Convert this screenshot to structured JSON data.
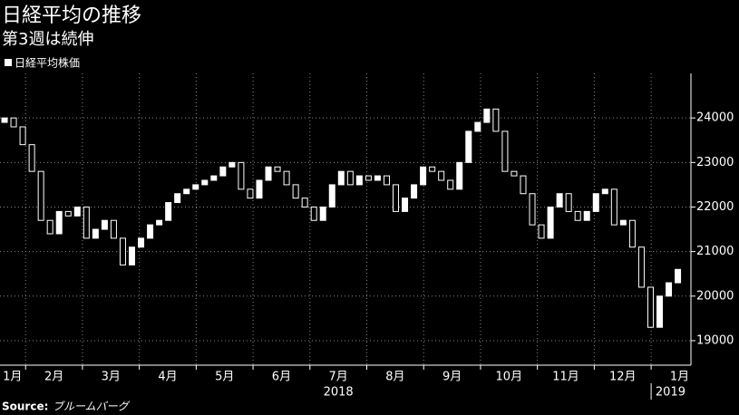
{
  "chart_data": {
    "type": "candlestick",
    "title": "日経平均の推移",
    "subtitle": "第3週は続伸",
    "legend_label": "日経平均株価",
    "source_label": "Source:",
    "source": "ブルームバーグ",
    "up_color": "#ffffff",
    "down_color": "#000000",
    "edge_color": "#ffffff",
    "x": [
      0.63,
      0.79,
      0.95,
      1.11,
      1.27,
      1.43,
      1.59,
      1.75,
      1.91,
      2.07,
      2.23,
      2.39,
      2.55,
      2.71,
      2.87,
      3.03,
      3.19,
      3.35,
      3.51,
      3.67,
      3.83,
      3.99,
      4.15,
      4.31,
      4.47,
      4.63,
      4.79,
      4.95,
      5.11,
      5.27,
      5.43,
      5.59,
      5.75,
      5.91,
      6.07,
      6.23,
      6.39,
      6.55,
      6.71,
      6.87,
      7.03,
      7.19,
      7.35,
      7.51,
      7.67,
      7.83,
      7.99,
      8.15,
      8.31,
      8.47,
      8.63,
      8.79,
      8.95,
      9.11,
      9.27,
      9.43,
      9.59,
      9.75,
      9.91,
      10.07,
      10.23,
      10.39,
      10.55,
      10.71,
      10.87,
      11.03,
      11.19,
      11.35,
      11.51,
      11.67,
      11.83,
      11.99,
      12.15,
      12.31,
      12.47
    ],
    "open": [
      23900,
      24000,
      23800,
      23400,
      22800,
      21700,
      21400,
      21900,
      21800,
      22000,
      21300,
      21500,
      21700,
      21300,
      20700,
      21100,
      21300,
      21600,
      21700,
      22100,
      22300,
      22400,
      22500,
      22600,
      22700,
      22900,
      23000,
      22400,
      22200,
      22600,
      22900,
      22800,
      22500,
      22200,
      22000,
      21700,
      22000,
      22500,
      22800,
      22500,
      22700,
      22600,
      22700,
      22500,
      21900,
      22200,
      22500,
      22900,
      22800,
      22600,
      22400,
      23000,
      23700,
      23900,
      24200,
      23700,
      22800,
      22700,
      22300,
      21600,
      21300,
      22000,
      22300,
      21900,
      21700,
      21900,
      22300,
      22400,
      21600,
      21700,
      21100,
      20200,
      19300,
      20000,
      20300
    ],
    "close": [
      24000,
      23800,
      23400,
      22800,
      21700,
      21400,
      21900,
      21800,
      22000,
      21300,
      21500,
      21700,
      21300,
      20700,
      21100,
      21300,
      21600,
      21700,
      22100,
      22300,
      22400,
      22500,
      22600,
      22700,
      22900,
      23000,
      22400,
      22200,
      22600,
      22900,
      22800,
      22500,
      22200,
      22000,
      21700,
      22000,
      22500,
      22800,
      22500,
      22700,
      22600,
      22700,
      22500,
      21900,
      22200,
      22500,
      22900,
      22800,
      22600,
      22400,
      23000,
      23700,
      23900,
      24200,
      23700,
      22800,
      22700,
      22300,
      21600,
      21300,
      22000,
      22300,
      21900,
      21700,
      21900,
      22300,
      22400,
      21600,
      21700,
      21100,
      20200,
      19300,
      20000,
      20300,
      20600
    ],
    "xlim": [
      0.55,
      12.7
    ],
    "xticks": [
      1,
      2,
      3,
      4,
      5,
      6,
      7,
      8,
      9,
      10,
      11,
      12
    ],
    "month_labels": {
      "x": [
        0.77,
        1.5,
        2.5,
        3.5,
        4.5,
        5.5,
        6.5,
        7.5,
        8.5,
        9.5,
        10.5,
        11.5,
        12.5
      ],
      "labels": [
        "1月",
        "2月",
        "3月",
        "4月",
        "5月",
        "6月",
        "7月",
        "8月",
        "9月",
        "10月",
        "11月",
        "12月",
        "1月"
      ]
    },
    "year_labels": {
      "x": [
        6.5,
        12.5
      ],
      "labels": [
        "2018",
        "2019"
      ]
    },
    "year_divider": 12,
    "ylim": [
      18450,
      25000
    ],
    "yticks": [
      19000,
      20000,
      21000,
      22000,
      23000,
      24000
    ],
    "grid": true
  }
}
